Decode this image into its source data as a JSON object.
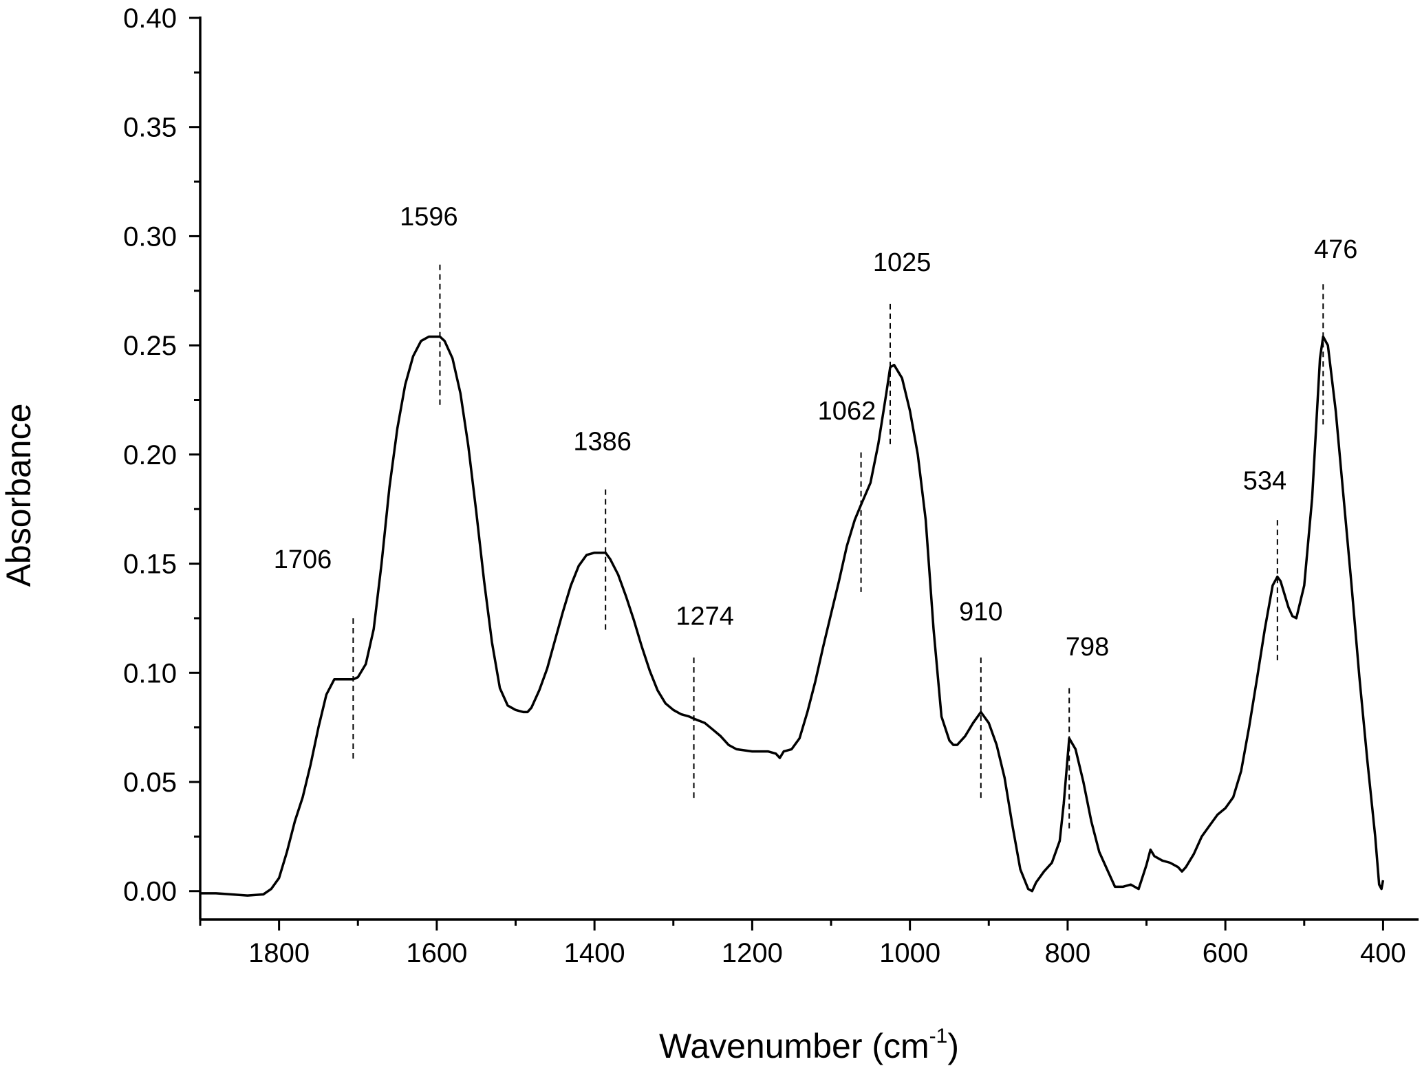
{
  "chart_data": {
    "type": "line",
    "title": "",
    "xlabel": "Wavenumber (cm",
    "xlabel_sup": "-1",
    "xlabel_close": ")",
    "ylabel": "Absorbance",
    "xlim": [
      1900,
      355
    ],
    "ylim": [
      -0.013,
      0.4
    ],
    "x_reversed": true,
    "grid": false,
    "legend": "none",
    "line_color": "#000000",
    "x_ticks": [
      1800,
      1600,
      1400,
      1200,
      1000,
      800,
      600,
      400
    ],
    "x_tick_labels": [
      "1800",
      "1600",
      "1400",
      "1200",
      "1000",
      "800",
      "600",
      "400"
    ],
    "y_ticks": [
      0.0,
      0.05,
      0.1,
      0.15,
      0.2,
      0.25,
      0.3,
      0.35,
      0.4
    ],
    "y_tick_labels": [
      "0.00",
      "0.05",
      "0.10",
      "0.15",
      "0.20",
      "0.25",
      "0.30",
      "0.35",
      "0.40"
    ],
    "series": [
      {
        "x": [
          1900,
          1880,
          1860,
          1840,
          1820,
          1810,
          1800,
          1790,
          1780,
          1770,
          1760,
          1750,
          1740,
          1730,
          1720,
          1710,
          1706,
          1700,
          1690,
          1680,
          1670,
          1660,
          1650,
          1640,
          1630,
          1620,
          1610,
          1600,
          1596,
          1590,
          1580,
          1570,
          1560,
          1550,
          1540,
          1530,
          1520,
          1510,
          1500,
          1490,
          1485,
          1480,
          1470,
          1460,
          1450,
          1440,
          1430,
          1420,
          1410,
          1400,
          1390,
          1386,
          1380,
          1370,
          1360,
          1350,
          1340,
          1330,
          1320,
          1310,
          1300,
          1290,
          1280,
          1274,
          1260,
          1250,
          1240,
          1230,
          1220,
          1200,
          1180,
          1170,
          1165,
          1160,
          1150,
          1140,
          1130,
          1120,
          1110,
          1100,
          1090,
          1080,
          1070,
          1062,
          1050,
          1040,
          1030,
          1025,
          1020,
          1010,
          1000,
          990,
          980,
          970,
          960,
          950,
          945,
          940,
          930,
          920,
          910,
          900,
          890,
          880,
          870,
          860,
          850,
          845,
          840,
          830,
          820,
          810,
          805,
          798,
          790,
          780,
          770,
          760,
          750,
          740,
          730,
          720,
          715,
          710,
          700,
          695,
          690,
          680,
          670,
          660,
          655,
          650,
          640,
          630,
          620,
          610,
          600,
          590,
          580,
          570,
          560,
          550,
          540,
          534,
          530,
          520,
          515,
          510,
          500,
          490,
          480,
          476,
          470,
          460,
          450,
          440,
          430,
          420,
          410,
          405,
          402,
          400
        ],
        "values": [
          -0.001,
          -0.001,
          -0.0015,
          -0.002,
          -0.0015,
          0.001,
          0.006,
          0.018,
          0.032,
          0.043,
          0.058,
          0.075,
          0.09,
          0.097,
          0.097,
          0.097,
          0.097,
          0.098,
          0.104,
          0.12,
          0.15,
          0.185,
          0.212,
          0.232,
          0.245,
          0.252,
          0.254,
          0.254,
          0.254,
          0.252,
          0.244,
          0.228,
          0.204,
          0.174,
          0.142,
          0.114,
          0.093,
          0.085,
          0.083,
          0.082,
          0.082,
          0.084,
          0.092,
          0.102,
          0.115,
          0.128,
          0.14,
          0.149,
          0.154,
          0.155,
          0.155,
          0.155,
          0.152,
          0.145,
          0.135,
          0.124,
          0.112,
          0.101,
          0.092,
          0.086,
          0.083,
          0.081,
          0.08,
          0.079,
          0.077,
          0.074,
          0.071,
          0.067,
          0.065,
          0.064,
          0.064,
          0.063,
          0.061,
          0.064,
          0.065,
          0.07,
          0.082,
          0.096,
          0.112,
          0.127,
          0.142,
          0.158,
          0.17,
          0.177,
          0.187,
          0.205,
          0.228,
          0.24,
          0.241,
          0.235,
          0.22,
          0.2,
          0.17,
          0.12,
          0.08,
          0.069,
          0.067,
          0.067,
          0.071,
          0.077,
          0.082,
          0.077,
          0.067,
          0.052,
          0.03,
          0.01,
          0.001,
          0.0,
          0.004,
          0.009,
          0.013,
          0.023,
          0.04,
          0.07,
          0.065,
          0.05,
          0.032,
          0.018,
          0.01,
          0.002,
          0.002,
          0.003,
          0.002,
          0.001,
          0.012,
          0.019,
          0.016,
          0.014,
          0.013,
          0.011,
          0.009,
          0.011,
          0.017,
          0.025,
          0.03,
          0.035,
          0.038,
          0.043,
          0.055,
          0.075,
          0.097,
          0.12,
          0.14,
          0.144,
          0.142,
          0.13,
          0.126,
          0.125,
          0.14,
          0.18,
          0.244,
          0.254,
          0.25,
          0.22,
          0.18,
          0.14,
          0.098,
          0.06,
          0.025,
          0.003,
          0.001,
          0.005
        ]
      }
    ],
    "peaks": [
      {
        "label": "1706",
        "x": 1706,
        "y_top": 0.125,
        "y_bottom": 0.06,
        "label_x": 1770,
        "label_y": 0.148
      },
      {
        "label": "1596",
        "x": 1596,
        "y_top": 0.287,
        "y_bottom": 0.222,
        "label_x": 1610,
        "label_y": 0.305
      },
      {
        "label": "1386",
        "x": 1386,
        "y_top": 0.184,
        "y_bottom": 0.118,
        "label_x": 1390,
        "label_y": 0.202
      },
      {
        "label": "1274",
        "x": 1274,
        "y_top": 0.107,
        "y_bottom": 0.041,
        "label_x": 1260,
        "label_y": 0.122
      },
      {
        "label": "1062",
        "x": 1062,
        "y_top": 0.201,
        "y_bottom": 0.137,
        "label_x": 1080,
        "label_y": 0.216
      },
      {
        "label": "1025",
        "x": 1025,
        "y_top": 0.269,
        "y_bottom": 0.204,
        "label_x": 1010,
        "label_y": 0.284
      },
      {
        "label": "910",
        "x": 910,
        "y_top": 0.107,
        "y_bottom": 0.041,
        "label_x": 910,
        "label_y": 0.124
      },
      {
        "label": "798",
        "x": 798,
        "y_top": 0.093,
        "y_bottom": 0.027,
        "label_x": 775,
        "label_y": 0.108
      },
      {
        "label": "534",
        "x": 534,
        "y_top": 0.17,
        "y_bottom": 0.105,
        "label_x": 550,
        "label_y": 0.184
      },
      {
        "label": "476",
        "x": 476,
        "y_top": 0.278,
        "y_bottom": 0.213,
        "label_x": 460,
        "label_y": 0.29
      }
    ]
  }
}
